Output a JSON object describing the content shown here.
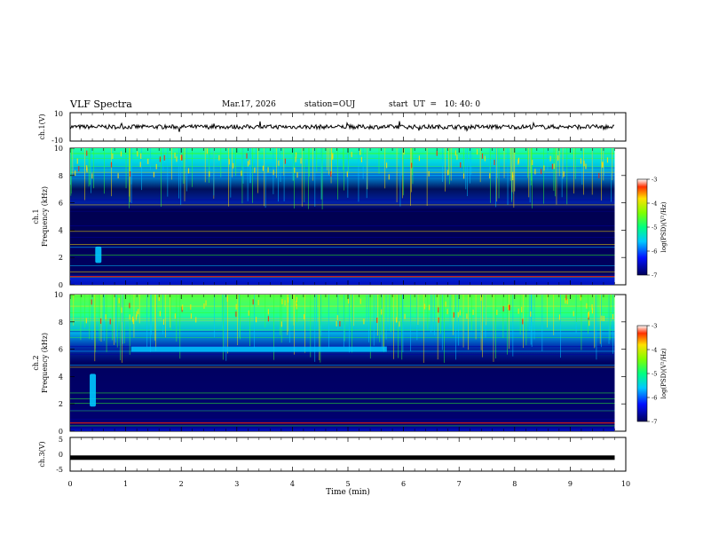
{
  "header": {
    "title": "VLF Spectra",
    "date": "Mar.17, 2026",
    "station": "station=OUJ",
    "start": "start  UT  =   10: 40: 0"
  },
  "chart_data": [
    {
      "type": "line",
      "name": "ch1-waveform",
      "ylabel": "ch.1(V)",
      "ylim": [
        -10,
        10
      ],
      "yticks": [
        "10",
        "-10"
      ],
      "description_values": {
        "baseline_V": 0,
        "typical_amplitude_V": 1.5
      }
    },
    {
      "type": "heatmap",
      "name": "ch1-spectrogram",
      "ylabel": "ch.1\nFrequency (kHz)",
      "ylabel_lines": [
        "ch.1",
        "Frequency (kHz)"
      ],
      "ylim": [
        0,
        10
      ],
      "yticks": [
        "0",
        "2",
        "4",
        "6",
        "8",
        "10"
      ],
      "xlim": [
        0,
        10
      ],
      "data_extent_min": 9.8,
      "colorbar": {
        "label": "log(PSD)(V²/Hz)",
        "range": [
          -7,
          -3
        ],
        "ticks": [
          "-3",
          "-4",
          "-5",
          "-6",
          "-7"
        ]
      },
      "dominant_band_kHz": [
        6.5,
        10
      ],
      "noise_burst": {
        "t_min": 0.5,
        "f_kHz": [
          1.6,
          2.8
        ]
      }
    },
    {
      "type": "heatmap",
      "name": "ch2-spectrogram",
      "ylabel_lines": [
        "ch.2",
        "Frequency (kHz)"
      ],
      "ylim": [
        0,
        10
      ],
      "yticks": [
        "0",
        "2",
        "4",
        "6",
        "8",
        "10"
      ],
      "xlim": [
        0,
        10
      ],
      "data_extent_min": 9.8,
      "colorbar": {
        "label": "log(PSD)(V²/Hz)",
        "range": [
          -7,
          -3
        ],
        "ticks": [
          "-3",
          "-4",
          "-5",
          "-6",
          "-7"
        ]
      },
      "band_6kHz": {
        "t_start_min": 1.1,
        "t_end_min": 5.7,
        "f_kHz": 6.0
      },
      "noise_burst": {
        "t_min": 0.4,
        "f_kHz": [
          1.8,
          4.2
        ]
      }
    },
    {
      "type": "line",
      "name": "ch3-waveform",
      "ylabel": "ch.3(V)",
      "ylim": [
        -5,
        5
      ],
      "yticks": [
        "5",
        "0",
        "-5"
      ],
      "constant_value_V": -1
    }
  ],
  "xaxis": {
    "label": "Time  (min)",
    "ticks": [
      "0",
      "1",
      "2",
      "3",
      "4",
      "5",
      "6",
      "7",
      "8",
      "9",
      "10"
    ],
    "range": [
      0,
      10
    ]
  },
  "colors": {
    "background": "#00004a",
    "low": "#0000a0",
    "mid": "#00c8ff",
    "high": "#30ff30",
    "peak": "#ffe000",
    "max": "#ff2000"
  }
}
